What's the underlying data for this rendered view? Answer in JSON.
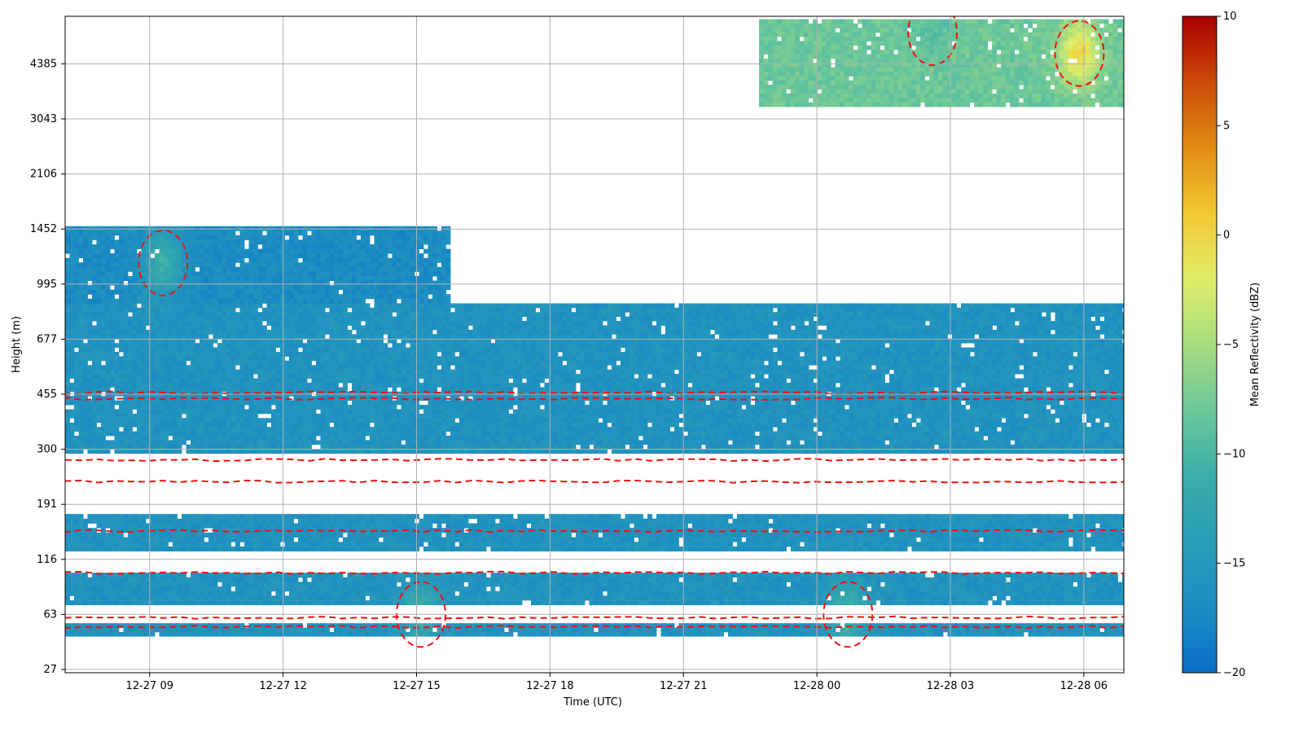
{
  "chart_data": {
    "type": "heatmap",
    "title": "",
    "xlabel": "Time (UTC)",
    "ylabel": "Height (m)",
    "x_ticks": [
      "12-27 09",
      "12-27 12",
      "12-27 15",
      "12-27 18",
      "12-27 21",
      "12-28 00",
      "12-28 03",
      "12-28 06"
    ],
    "x_tick_hours": [
      9,
      12,
      15,
      18,
      21,
      24,
      27,
      30
    ],
    "xlim_hours": [
      7.1,
      30.9
    ],
    "y_ticks": [
      "27",
      "63",
      "116",
      "191",
      "300",
      "455",
      "677",
      "995",
      "1452",
      "2106",
      "3043",
      "4385"
    ],
    "colorbar": {
      "label": "Mean Reflectivity (dBZ)",
      "ticks": [
        "10",
        "5",
        "0",
        "−5",
        "−10",
        "−15",
        "−20"
      ],
      "tick_values": [
        10,
        5,
        0,
        -5,
        -10,
        -15,
        -20
      ],
      "range": [
        -20,
        10
      ],
      "colormap": [
        "#0a6fc8",
        "#1d8ec2",
        "#2a9db6",
        "#3aaea8",
        "#6cc79a",
        "#a8dc7f",
        "#e0ee6a",
        "#f2c832",
        "#e08c14",
        "#cc4a0a",
        "#a80000"
      ]
    },
    "contour": {
      "color": "#ee1111",
      "style": "dashed"
    },
    "echo_layers": [
      {
        "name": "low-boundary",
        "height_m": [
          45,
          55
        ],
        "hours": [
          7.1,
          30.9
        ],
        "dbz": -16
      },
      {
        "name": "low-boundary-2",
        "height_m": [
          70,
          100
        ],
        "hours": [
          7.1,
          30.9
        ],
        "dbz": -16
      },
      {
        "name": "mid-boundary",
        "height_m": [
          125,
          175
        ],
        "hours": [
          7.1,
          30.9
        ],
        "dbz": -16
      },
      {
        "name": "boundary-layer",
        "height_m": [
          290,
          870
        ],
        "hours": [
          7.1,
          30.9
        ],
        "dbz": -16
      },
      {
        "name": "morning-cloud",
        "height_m": [
          870,
          1480
        ],
        "hours": [
          7.1,
          15.7
        ],
        "dbz": -17
      },
      {
        "name": "upper-cloud",
        "height_m": [
          3300,
          5900
        ],
        "hours": [
          22.7,
          30.9
        ],
        "dbz": -8
      }
    ],
    "echo_cores": [
      {
        "hour": 9.3,
        "height_m": 1150,
        "dbz": -11
      },
      {
        "hour": 15.1,
        "height_m": 63,
        "dbz": -11
      },
      {
        "hour": 24.7,
        "height_m": 63,
        "dbz": -10
      },
      {
        "hour": 29.9,
        "height_m": 4700,
        "dbz": 0
      },
      {
        "hour": 26.6,
        "height_m": 5400,
        "dbz": -9
      }
    ],
    "grid": true
  }
}
